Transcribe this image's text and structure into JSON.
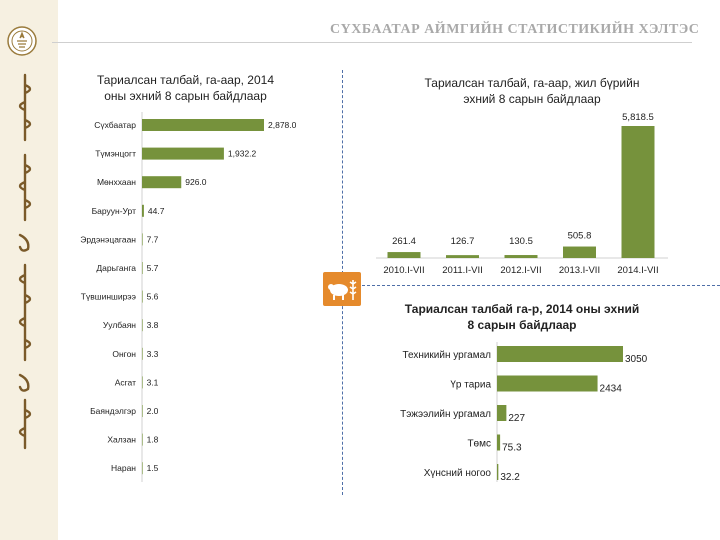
{
  "header": {
    "title": "СҮХБААТАР АЙМГИЙН СТАТИСТИКИЙН ХЭЛТЭС"
  },
  "colors": {
    "bar": "#76923c",
    "accent": "#e58a2c",
    "divider": "#4f6fa8"
  },
  "icons": {
    "logo": "emblem-seal-icon",
    "section": "sheep-wheat-icon"
  },
  "chart_data": [
    {
      "type": "bar",
      "orientation": "horizontal",
      "title": "Тариалсан талбай, га-аар, 2014 оны эхний 8 сарын байдлаар",
      "title_lines": [
        "Тариалсан талбай, га-аар, 2014",
        "оны эхний 8 сарын байдлаар"
      ],
      "categories": [
        "Сүхбаатар",
        "Түмэнцогт",
        "Мөнххаан",
        "Баруун-Урт",
        "Эрдэнэцагаан",
        "Дарьганга",
        "Түвшинширээ",
        "Уулбаян",
        "Онгон",
        "Асгат",
        "Баяндэлгэр",
        "Халзан",
        "Наран"
      ],
      "values": [
        2878.0,
        1932.2,
        926.0,
        44.7,
        7.7,
        5.7,
        5.6,
        3.8,
        3.3,
        3.1,
        2.0,
        1.8,
        1.5
      ],
      "labels": [
        "2,878.0",
        "1,932.2",
        "926.0",
        "44.7",
        "7.7",
        "5.7",
        "5.6",
        "3.8",
        "3.3",
        "3.1",
        "2.0",
        "1.8",
        "1.5"
      ]
    },
    {
      "type": "bar",
      "title": "Тариалсан талбай, га-аар, жил бүрийн эхний 8 сарын байдлаар",
      "title_lines": [
        "Тариалсан талбай, га-аар, жил бүрийн",
        "эхний 8 сарын байдлаар"
      ],
      "categories": [
        "2010.I-VII",
        "2011.I-VII",
        "2012.I-VII",
        "2013.I-VII",
        "2014.I-VII"
      ],
      "values": [
        261.4,
        126.7,
        130.5,
        505.8,
        5818.5
      ],
      "labels": [
        "261.4",
        "126.7",
        "130.5",
        "505.8",
        "5,818.5"
      ]
    },
    {
      "type": "bar",
      "orientation": "horizontal",
      "title": "Тариалсан талбай га-р, 2014 оны эхний 8 сарын байдлаар",
      "title_lines": [
        "Тариалсан талбай га-р, 2014 оны эхний",
        "8 сарын байдлаар"
      ],
      "categories": [
        "Техникийн ургамал",
        "Үр тариа",
        "Тэжээлийн ургамал",
        "Төмс",
        "Хүнсний ногоо"
      ],
      "values": [
        3050,
        2434,
        227,
        75.3,
        32.2
      ],
      "labels": [
        "3050",
        "2434",
        "227",
        "75.3",
        "32.2"
      ]
    }
  ]
}
